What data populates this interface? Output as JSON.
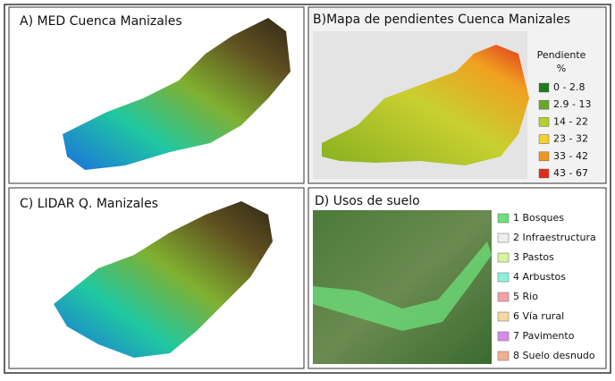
{
  "panels": [
    {
      "title": "A) MED Cuenca Manizales"
    },
    {
      "title": "B)Mapa de pendientes Cuenca Manizales",
      "legend": {
        "title": "Pendiente",
        "unit": "%",
        "items": [
          {
            "label": "0 - 2.8",
            "color": "#1f7a1f"
          },
          {
            "label": "2.9 - 13",
            "color": "#6aa52a"
          },
          {
            "label": "14 - 22",
            "color": "#b8cf2a"
          },
          {
            "label": "23 - 32",
            "color": "#f2d22b"
          },
          {
            "label": "33 - 42",
            "color": "#f0951f"
          },
          {
            "label": "43 - 67",
            "color": "#e02b1c"
          }
        ]
      }
    },
    {
      "title": "C) LIDAR Q. Manizales"
    },
    {
      "title": "D) Usos de suelo",
      "legend": {
        "items": [
          {
            "label": "1 Bosques",
            "color": "#6ee07a"
          },
          {
            "label": "2 Infraestructura",
            "color": "#eeeeee"
          },
          {
            "label": "3 Pastos",
            "color": "#d8f59a"
          },
          {
            "label": "4 Arbustos",
            "color": "#8ff0d8"
          },
          {
            "label": "5 Rio",
            "color": "#f4a0a8"
          },
          {
            "label": "6 Vía rural",
            "color": "#f5d7a0"
          },
          {
            "label": "7 Pavimento",
            "color": "#d98ae8"
          },
          {
            "label": "8 Suelo desnudo",
            "color": "#f0b090"
          }
        ]
      }
    }
  ]
}
